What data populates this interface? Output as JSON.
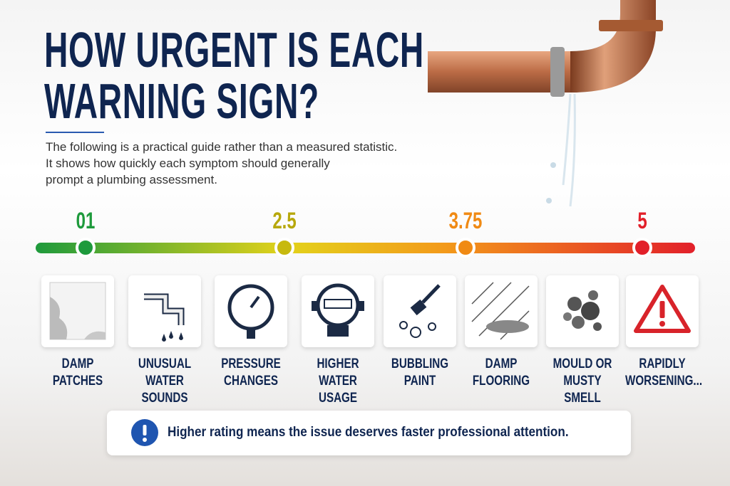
{
  "header": {
    "title_lines": [
      "HOW URGENT IS EACH",
      "WARNING SIGN?"
    ],
    "description_lines": [
      "The following is a practical guide rather than a measured statistic.",
      "It shows how quickly each symptom should generally",
      "prompt a plumbing assessment."
    ]
  },
  "scale": {
    "markers": [
      "01",
      "2.5",
      "3.75",
      "5"
    ]
  },
  "signs": [
    {
      "lines": [
        "DAMP",
        "PATCHES"
      ]
    },
    {
      "lines": [
        "UNUSUAL",
        "WATER SOUNDS"
      ]
    },
    {
      "lines": [
        "PRESSURE",
        "CHANGES"
      ]
    },
    {
      "lines": [
        "HIGHER",
        "WATER USAGE"
      ]
    },
    {
      "lines": [
        "BUBBLING",
        "PAINT"
      ]
    },
    {
      "lines": [
        "DAMP",
        "FLOORING"
      ]
    },
    {
      "lines": [
        "MOULD OR",
        "MUSTY SMELL"
      ]
    },
    {
      "lines": [
        "RAPIDLY",
        "WORSENING..."
      ]
    }
  ],
  "footer": {
    "note": "Higher rating means the issue deserves faster professional attention."
  }
}
